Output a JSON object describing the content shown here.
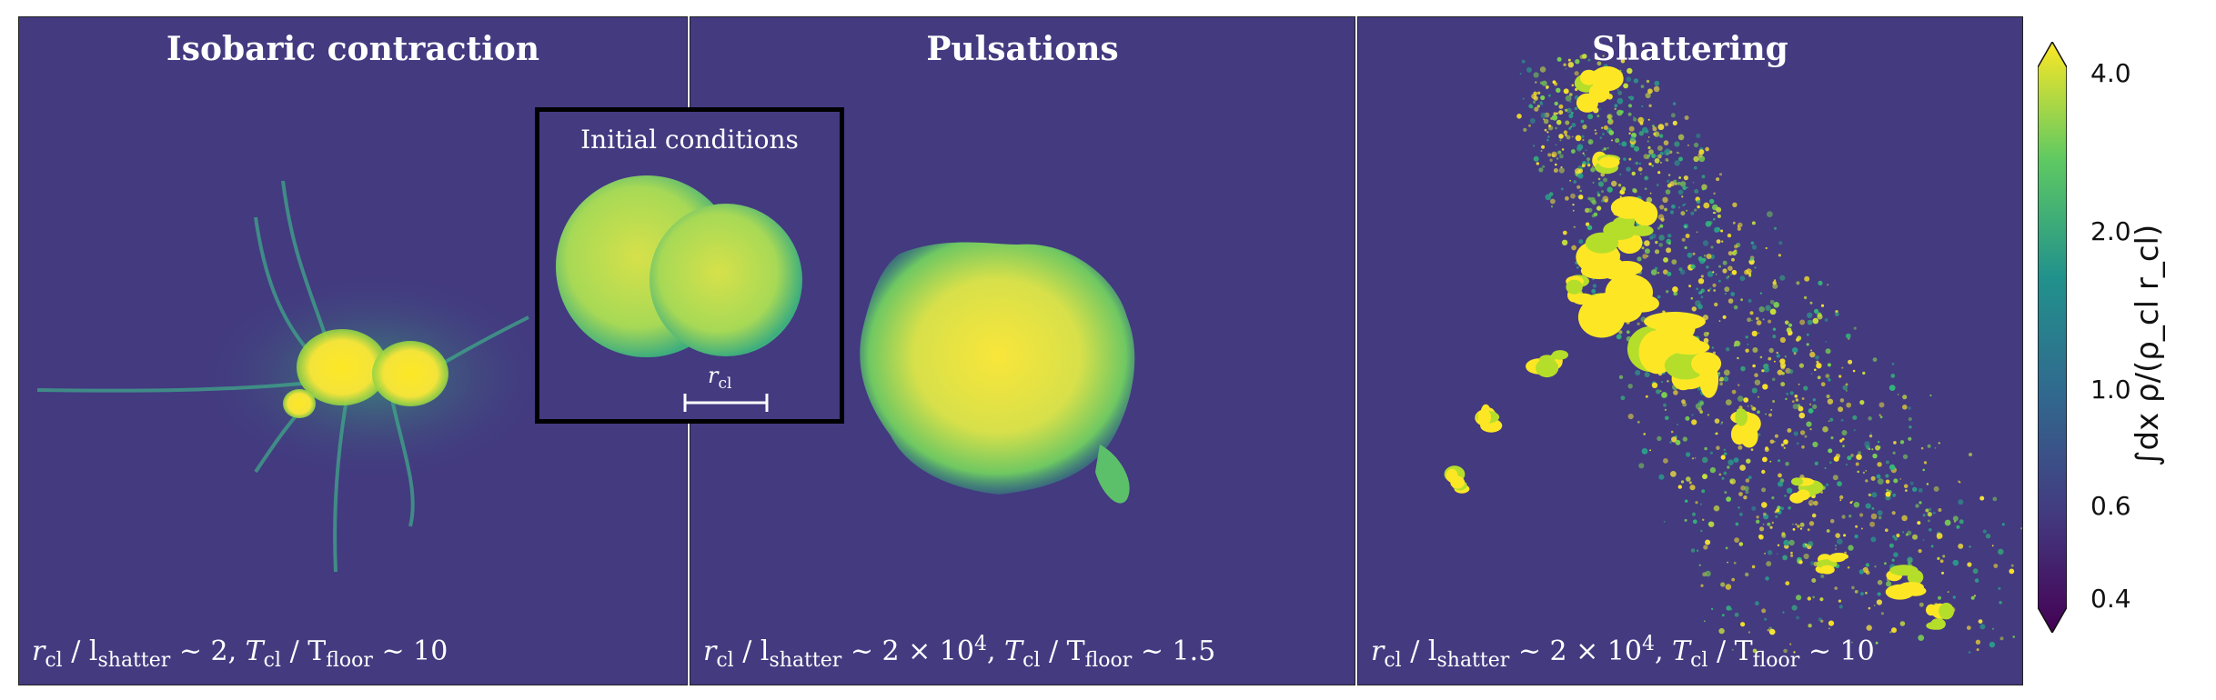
{
  "panels": [
    {
      "title": "Isobaric contraction",
      "note": {
        "a": "r",
        "a_sub": "cl",
        "b": " / l",
        "b_sub": "shatter",
        "c": " ~ 2, ",
        "d": "T",
        "d_sub": "cl",
        "e": " / T",
        "e_sub": "floor",
        "f": " ~ 10",
        "sup": ""
      }
    },
    {
      "title": "Pulsations",
      "note": {
        "a": "r",
        "a_sub": "cl",
        "b": " / l",
        "b_sub": "shatter",
        "c": " ~ 2 × 10",
        "sup": "4",
        "c2": ", ",
        "d": "T",
        "d_sub": "cl",
        "e": " / T",
        "e_sub": "floor",
        "f": " ~ 1.5"
      }
    },
    {
      "title": "Shattering",
      "note": {
        "a": "r",
        "a_sub": "cl",
        "b": " / l",
        "b_sub": "shatter",
        "c": " ~ 2 × 10",
        "sup": "4",
        "c2": ", ",
        "d": "T",
        "d_sub": "cl",
        "e": " / T",
        "e_sub": "floor",
        "f": " ~ 10"
      }
    }
  ],
  "inset": {
    "title": "Initial conditions",
    "scale_label": "r",
    "scale_label_sub": "cl"
  },
  "colorbar": {
    "label": "∫dx ρ/(ρ_cl r_cl)",
    "ticks": [
      "4.0",
      "2.0",
      "1.0",
      "0.6",
      "0.4"
    ],
    "colors": {
      "low": "#440154",
      "mid": "#21918c",
      "high": "#fde725",
      "background": "#433a80"
    },
    "scale": "log"
  }
}
